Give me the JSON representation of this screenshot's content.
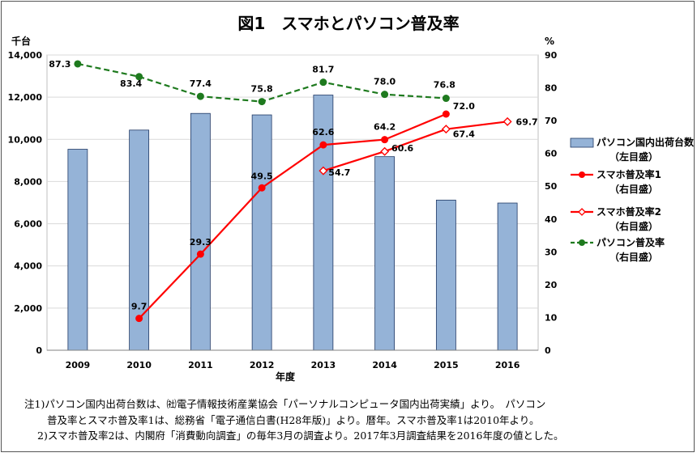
{
  "chart_data": {
    "type": "bar+line",
    "title": "図1　スマホとパソコン普及率",
    "xlabel": "年度",
    "y_left_unit": "千台",
    "y_right_unit": "%",
    "y_left_range": [
      0,
      14000
    ],
    "y_right_range": [
      0,
      90
    ],
    "y_left_ticks": [
      "0",
      "2,000",
      "4,000",
      "6,000",
      "8,000",
      "10,000",
      "12,000",
      "14,000"
    ],
    "y_right_ticks": [
      "0",
      "10",
      "20",
      "30",
      "40",
      "50",
      "60",
      "70",
      "80",
      "90"
    ],
    "categories": [
      "2009",
      "2010",
      "2011",
      "2012",
      "2013",
      "2014",
      "2015",
      "2016"
    ],
    "legend_position": "right",
    "series": [
      {
        "name": "パソコン国内出荷台数",
        "legend_lines": [
          "パソコン国内出荷台数",
          "（左目盛）"
        ],
        "kind": "bar",
        "axis": "left",
        "color": "#95b3d7",
        "values": [
          9530,
          10440,
          11230,
          11160,
          12100,
          9180,
          7120,
          6980
        ]
      },
      {
        "name": "スマホ普及率1",
        "legend_lines": [
          "スマホ普及率1",
          "（右目盛）"
        ],
        "kind": "line",
        "axis": "right",
        "color": "#ff0000",
        "marker": "circle",
        "values": [
          null,
          9.7,
          29.3,
          49.5,
          62.6,
          64.2,
          72.0,
          null
        ],
        "labels": [
          "",
          "9.7",
          "29.3",
          "49.5",
          "62.6",
          "64.2",
          "72.0",
          ""
        ]
      },
      {
        "name": "スマホ普及率2",
        "legend_lines": [
          "スマホ普及率2",
          "（右目盛）"
        ],
        "kind": "line",
        "axis": "right",
        "color": "#ff0000",
        "marker": "diamond-open",
        "values": [
          null,
          null,
          null,
          null,
          54.7,
          60.6,
          67.4,
          69.7
        ],
        "labels": [
          "",
          "",
          "",
          "",
          "54.7",
          "60.6",
          "67.4",
          "69.7"
        ]
      },
      {
        "name": "パソコン普及率",
        "legend_lines": [
          "パソコン普及率",
          "（右目盛）"
        ],
        "kind": "line-dashed",
        "axis": "right",
        "color": "#1e7a1e",
        "marker": "circle",
        "values": [
          87.3,
          83.4,
          77.4,
          75.8,
          81.7,
          78.0,
          76.8,
          null
        ],
        "labels": [
          "87.3",
          "83.4",
          "77.4",
          "75.8",
          "81.7",
          "78.0",
          "76.8",
          ""
        ]
      }
    ],
    "notes": [
      "注1)パソコン国内出荷台数は、㈳電子情報技術産業協会「パーソナルコンピュータ国内出荷実績」より。　パソコン",
      "普及率とスマホ普及率1は、総務省「電子通信白書(H28年版)」より。暦年。スマホ普及率1は2010年より。",
      "2)スマホ普及率2は、内閣府「消費動向調査」の毎年3月の調査より。2017年3月調査結果を2016年度の値とした。"
    ]
  }
}
